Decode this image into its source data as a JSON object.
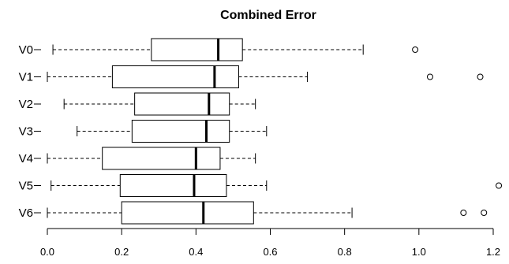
{
  "chart_data": {
    "type": "boxplot",
    "orientation": "horizontal",
    "title": "Combined Error",
    "xlabel": "",
    "ylabel": "",
    "xlim": [
      0.0,
      1.2
    ],
    "xticks": [
      0.0,
      0.2,
      0.4,
      0.6,
      0.8,
      1.0,
      1.2
    ],
    "xtick_labels": [
      "0.0",
      "0.2",
      "0.4",
      "0.6",
      "0.8",
      "1.0",
      "1.2"
    ],
    "grid": false,
    "categories": [
      "V0",
      "V1",
      "V2",
      "V3",
      "V4",
      "V5",
      "V6"
    ],
    "series": [
      {
        "label": "V0",
        "whisker_low": 0.015,
        "q1": 0.28,
        "median": 0.46,
        "q3": 0.525,
        "whisker_high": 0.85,
        "outliers": [
          0.99
        ]
      },
      {
        "label": "V1",
        "whisker_low": 0.0,
        "q1": 0.175,
        "median": 0.45,
        "q3": 0.515,
        "whisker_high": 0.7,
        "outliers": [
          1.03,
          1.165
        ]
      },
      {
        "label": "V2",
        "whisker_low": 0.045,
        "q1": 0.235,
        "median": 0.435,
        "q3": 0.49,
        "whisker_high": 0.56,
        "outliers": []
      },
      {
        "label": "V3",
        "whisker_low": 0.08,
        "q1": 0.228,
        "median": 0.428,
        "q3": 0.49,
        "whisker_high": 0.59,
        "outliers": []
      },
      {
        "label": "V4",
        "whisker_low": 0.0,
        "q1": 0.148,
        "median": 0.4,
        "q3": 0.465,
        "whisker_high": 0.56,
        "outliers": []
      },
      {
        "label": "V5",
        "whisker_low": 0.01,
        "q1": 0.196,
        "median": 0.395,
        "q3": 0.482,
        "whisker_high": 0.59,
        "outliers": [
          1.215
        ]
      },
      {
        "label": "V6",
        "whisker_low": 0.0,
        "q1": 0.2,
        "median": 0.42,
        "q3": 0.555,
        "whisker_high": 0.82,
        "outliers": [
          1.12,
          1.175
        ]
      }
    ]
  }
}
